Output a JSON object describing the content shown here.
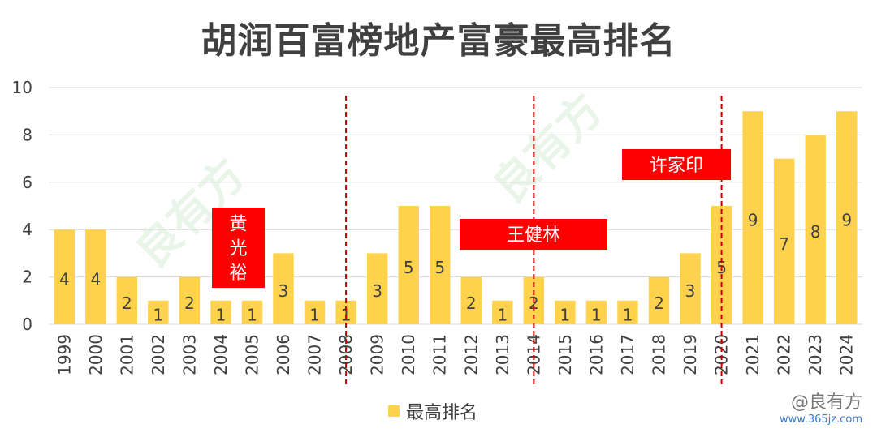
{
  "watermark": {
    "text": "@良有方",
    "url": "www.365jz.com",
    "background": "良有方"
  },
  "chart_data": {
    "type": "bar",
    "title": "胡润百富榜地产富豪最高排名",
    "xlabel": "",
    "ylabel": "",
    "ylim": [
      0,
      10
    ],
    "yticks": [
      0,
      2,
      4,
      6,
      8,
      10
    ],
    "grid": true,
    "legend_position": "bottom",
    "bar_color": "#ffd24d",
    "categories": [
      "1999",
      "2000",
      "2001",
      "2002",
      "2003",
      "2004",
      "2005",
      "2006",
      "2007",
      "2008",
      "2009",
      "2010",
      "2011",
      "2012",
      "2013",
      "2014",
      "2015",
      "2016",
      "2017",
      "2018",
      "2019",
      "2020",
      "2021",
      "2022",
      "2023",
      "2024"
    ],
    "series": [
      {
        "name": "最高排名",
        "values": [
          4,
          4,
          2,
          1,
          2,
          1,
          1,
          3,
          1,
          1,
          3,
          5,
          5,
          2,
          1,
          2,
          1,
          1,
          1,
          2,
          3,
          5,
          9,
          7,
          8,
          9
        ]
      }
    ],
    "annotations": [
      {
        "text": "黄光裕",
        "years": "2004-2005",
        "color": "#ff0000"
      },
      {
        "text": "王健林",
        "years": "2012-2016",
        "color": "#ff0000"
      },
      {
        "text": "许家印",
        "years": "2018-2020",
        "color": "#ff0000"
      }
    ],
    "divider_years": [
      "2008",
      "2014",
      "2020"
    ],
    "divider_color": "#c00000"
  }
}
